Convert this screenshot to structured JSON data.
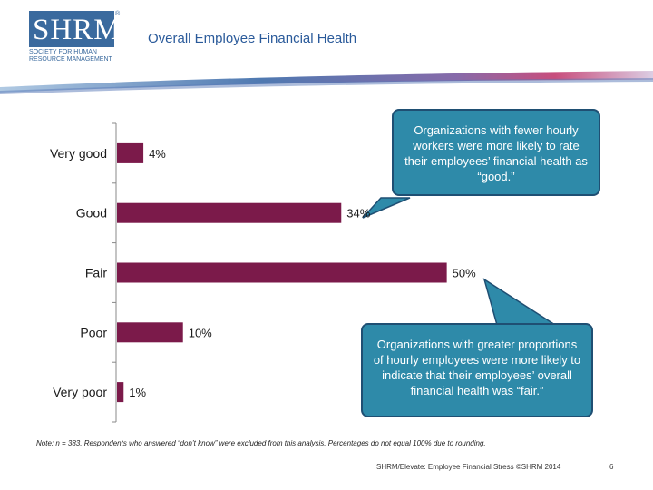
{
  "logo": {
    "abbr": "SHRM",
    "reg": "®",
    "sub": "Society for Human Resource Management"
  },
  "header": {
    "title": "Overall Employee Financial Health"
  },
  "chart_data": {
    "type": "bar",
    "orientation": "horizontal",
    "title": "Overall Employee Financial Health",
    "categories": [
      "Very good",
      "Good",
      "Fair",
      "Poor",
      "Very poor"
    ],
    "values": [
      4,
      34,
      50,
      10,
      1
    ],
    "value_labels": [
      "4%",
      "34%",
      "50%",
      "10%",
      "1%"
    ],
    "xlim": [
      0,
      55
    ],
    "bar_color": "#7b1a4a",
    "axis_color": "#888888"
  },
  "callouts": [
    {
      "text": "Organizations with fewer hourly workers were more likely to rate their employees’ financial health as “good.”"
    },
    {
      "text": "Organizations with greater proportions of hourly employees were more likely to indicate that their employees’ overall financial health was “fair.”"
    }
  ],
  "note": "Note: n = 383. Respondents who answered “don’t know” were excluded from this analysis. Percentages do not equal 100% due to rounding.",
  "footer": {
    "source": "SHRM/Elevate: Employee Financial Stress ©SHRM 2014",
    "page": "6"
  },
  "colors": {
    "callout_fill": "#2e8aa9",
    "callout_border": "#1f4f73",
    "brand": "#3a6a9e"
  }
}
